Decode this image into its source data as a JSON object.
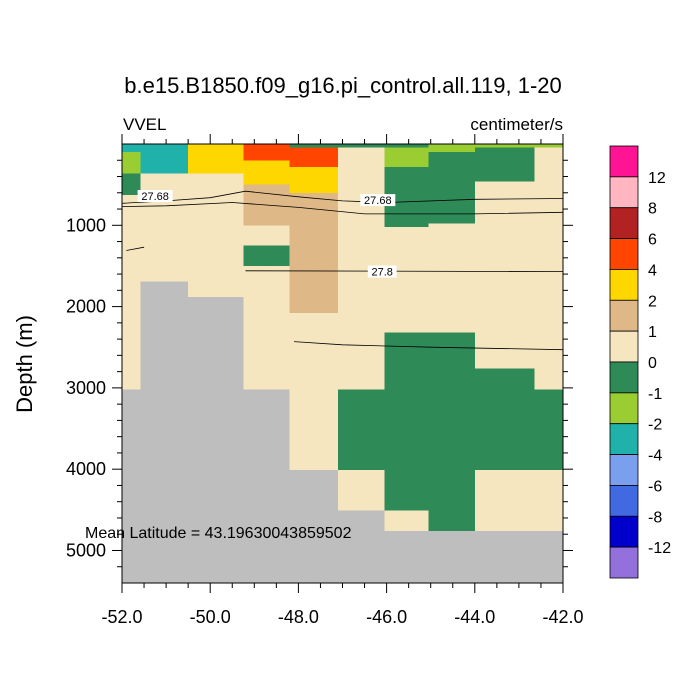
{
  "chart_data": {
    "type": "heatmap",
    "title": "b.e15.B1850.f09_g16.pi_control.all.119, 1-20",
    "left_string": "VVEL",
    "right_string": "centimeter/s",
    "ylabel": "Depth (m)",
    "xlabel": "",
    "x_ticks": [
      "-52.0",
      "-50.0",
      "-48.0",
      "-46.0",
      "-44.0",
      "-42.0"
    ],
    "y_ticks": [
      "1000",
      "2000",
      "3000",
      "4000",
      "5000"
    ],
    "xlim": [
      -52.0,
      -42.0
    ],
    "ylim_depth": [
      0,
      5400
    ],
    "annotation": "Mean Latitude = 43.19630043859502",
    "colorbar": {
      "levels": [
        "12",
        "8",
        "6",
        "4",
        "2",
        "1",
        "0",
        "-1",
        "-2",
        "-4",
        "-6",
        "-8",
        "-12"
      ],
      "colors_top_to_bottom": [
        "#FF1493",
        "#FFB6C1",
        "#B22222",
        "#FF4500",
        "#FFD700",
        "#DEB887",
        "#F5E6C0",
        "#2E8B57",
        "#9ACD32",
        "#20B2AA",
        "#7B9FEF",
        "#4169E1",
        "#0000CD",
        "#9370DB"
      ]
    },
    "class_colors": {
      "land": "#BEBEBE",
      "A": "#9ACD32",
      "B": "#20B2AA",
      "C": "#FFD700",
      "D": "#FF4500",
      "E": "#F5E6C0",
      "F": "#2E8B57",
      "G": "#DEB887"
    },
    "columns": [
      {
        "lon": [
          -52.0,
          -51.58
        ],
        "cells": [
          [
            0,
            100,
            "B"
          ],
          [
            100,
            360,
            "A"
          ],
          [
            360,
            630,
            "F"
          ],
          [
            630,
            3020,
            "E"
          ],
          [
            3020,
            5400,
            "land"
          ]
        ]
      },
      {
        "lon": [
          -51.58,
          -50.5
        ],
        "cells": [
          [
            0,
            360,
            "B"
          ],
          [
            360,
            1690,
            "E"
          ],
          [
            1690,
            5400,
            "land"
          ]
        ]
      },
      {
        "lon": [
          -50.5,
          -49.25
        ],
        "cells": [
          [
            0,
            360,
            "C"
          ],
          [
            360,
            1880,
            "E"
          ],
          [
            1880,
            5400,
            "land"
          ]
        ]
      },
      {
        "lon": [
          -49.25,
          -48.2
        ],
        "cells": [
          [
            0,
            200,
            "D"
          ],
          [
            200,
            500,
            "C"
          ],
          [
            500,
            1000,
            "G"
          ],
          [
            1000,
            1250,
            "E"
          ],
          [
            1250,
            1500,
            "F"
          ],
          [
            1500,
            3020,
            "E"
          ],
          [
            3020,
            5400,
            "land"
          ]
        ]
      },
      {
        "lon": [
          -48.2,
          -47.1
        ],
        "cells": [
          [
            0,
            40,
            "F"
          ],
          [
            40,
            280,
            "D"
          ],
          [
            280,
            600,
            "C"
          ],
          [
            600,
            2080,
            "G"
          ],
          [
            2080,
            4010,
            "E"
          ],
          [
            4010,
            5400,
            "land"
          ]
        ]
      },
      {
        "lon": [
          -47.1,
          -46.05
        ],
        "cells": [
          [
            0,
            40,
            "F"
          ],
          [
            40,
            3020,
            "E"
          ],
          [
            3020,
            4010,
            "F"
          ],
          [
            4010,
            4510,
            "E"
          ],
          [
            4510,
            5400,
            "land"
          ]
        ]
      },
      {
        "lon": [
          -46.05,
          -45.05
        ],
        "cells": [
          [
            0,
            40,
            "F"
          ],
          [
            40,
            280,
            "A"
          ],
          [
            280,
            1020,
            "F"
          ],
          [
            1020,
            2320,
            "E"
          ],
          [
            2320,
            4510,
            "F"
          ],
          [
            4510,
            4760,
            "E"
          ],
          [
            4760,
            5400,
            "land"
          ]
        ]
      },
      {
        "lon": [
          -45.05,
          -44.0
        ],
        "cells": [
          [
            0,
            100,
            "A"
          ],
          [
            100,
            980,
            "F"
          ],
          [
            980,
            2320,
            "E"
          ],
          [
            2320,
            4760,
            "F"
          ],
          [
            4760,
            5400,
            "land"
          ]
        ]
      },
      {
        "lon": [
          -44.0,
          -42.65
        ],
        "cells": [
          [
            0,
            40,
            "A"
          ],
          [
            40,
            460,
            "F"
          ],
          [
            460,
            2760,
            "E"
          ],
          [
            2760,
            4010,
            "F"
          ],
          [
            4010,
            4760,
            "E"
          ],
          [
            4760,
            5400,
            "land"
          ]
        ]
      },
      {
        "lon": [
          -42.65,
          -42.0
        ],
        "cells": [
          [
            0,
            40,
            "A"
          ],
          [
            40,
            600,
            "E"
          ],
          [
            600,
            3020,
            "E"
          ],
          [
            3020,
            4010,
            "F"
          ],
          [
            4010,
            4760,
            "E"
          ],
          [
            4760,
            5400,
            "land"
          ]
        ]
      }
    ],
    "contours": [
      {
        "points": [
          [
            -52.0,
            730
          ],
          [
            -51.0,
            700
          ],
          [
            -50.0,
            660
          ],
          [
            -49.2,
            580
          ],
          [
            -48.0,
            650
          ],
          [
            -47.0,
            700
          ],
          [
            -46.0,
            720
          ],
          [
            -44.0,
            680
          ],
          [
            -42.0,
            670
          ]
        ],
        "label": "27.68"
      },
      {
        "points": [
          [
            -52.0,
            770
          ],
          [
            -51.0,
            760
          ],
          [
            -49.5,
            720
          ],
          [
            -48.0,
            780
          ],
          [
            -46.5,
            860
          ],
          [
            -44.0,
            860
          ],
          [
            -42.0,
            840
          ]
        ],
        "label": ""
      },
      {
        "points": [
          [
            -51.9,
            1310
          ],
          [
            -51.5,
            1270
          ]
        ],
        "label": ""
      },
      {
        "points": [
          [
            -49.2,
            1560
          ],
          [
            -42.0,
            1570
          ]
        ],
        "label": "27.8"
      },
      {
        "points": [
          [
            -48.1,
            2430
          ],
          [
            -47.0,
            2470
          ],
          [
            -45.0,
            2500
          ],
          [
            -42.0,
            2530
          ]
        ],
        "label": ""
      }
    ],
    "contour_labels": [
      {
        "text": "27.68",
        "lon": -51.25,
        "depth": 640
      },
      {
        "text": "27.68",
        "lon": -46.2,
        "depth": 690
      },
      {
        "text": "27.8",
        "lon": -46.1,
        "depth": 1570
      }
    ]
  }
}
